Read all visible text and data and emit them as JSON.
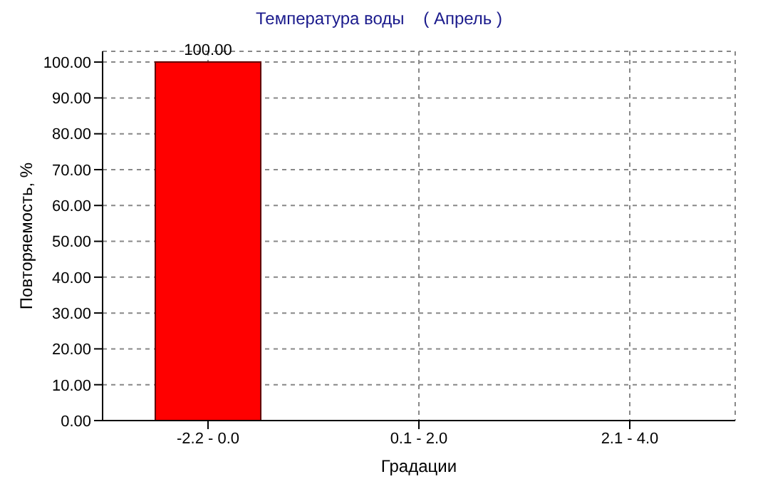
{
  "chart_data": {
    "type": "bar",
    "title": "Температура воды    ( Апрель )",
    "xlabel": "Градации",
    "ylabel": "Повторяемость, %",
    "categories": [
      "-2.2 - 0.0",
      "0.1 - 2.0",
      "2.1 - 4.0"
    ],
    "values": [
      100,
      0,
      0
    ],
    "color": "#ff0000",
    "value_labels": [
      "100.00",
      null,
      null
    ],
    "ylim": [
      0,
      103
    ],
    "yticks": [
      {
        "value": 0,
        "label": "0.00"
      },
      {
        "value": 10,
        "label": "10.00"
      },
      {
        "value": 20,
        "label": "20.00"
      },
      {
        "value": 30,
        "label": "30.00"
      },
      {
        "value": 40,
        "label": "40.00"
      },
      {
        "value": 50,
        "label": "50.00"
      },
      {
        "value": 60,
        "label": "60.00"
      },
      {
        "value": 70,
        "label": "70.00"
      },
      {
        "value": 80,
        "label": "80.00"
      },
      {
        "value": 90,
        "label": "90.00"
      },
      {
        "value": 100,
        "label": "100.00"
      }
    ],
    "grid": true
  }
}
